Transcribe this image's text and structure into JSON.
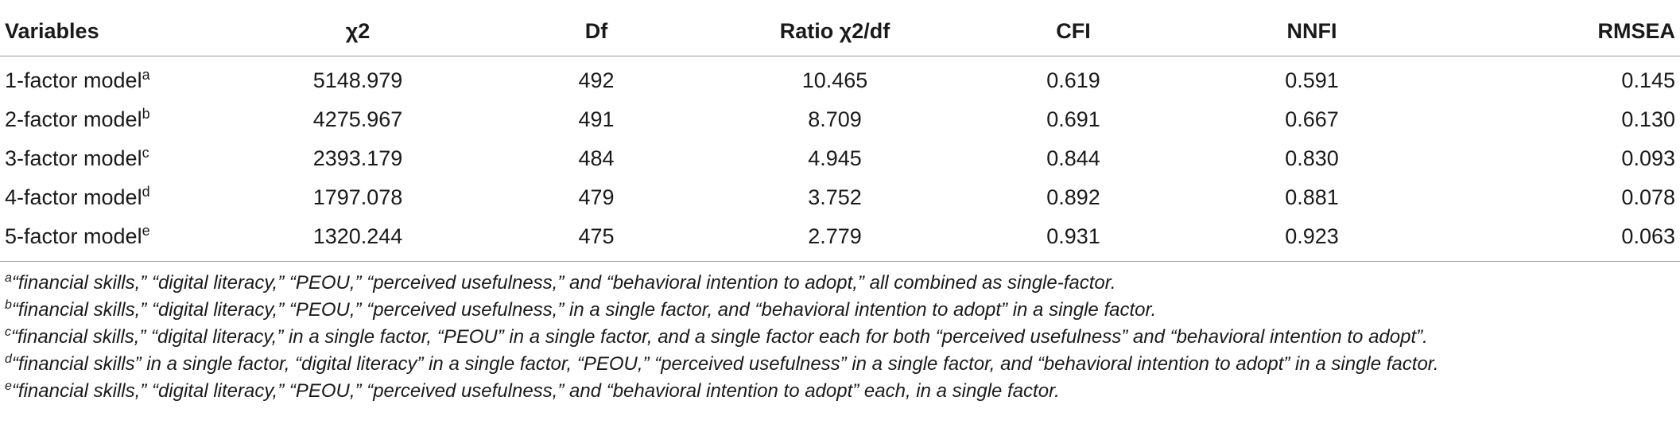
{
  "table": {
    "headers": [
      "Variables",
      "χ2",
      "Df",
      "Ratio  χ2/df",
      "CFI",
      "NNFI",
      "RMSEA"
    ],
    "rows": [
      {
        "label": "1-factor model",
        "sup": "a",
        "values": [
          "5148.979",
          "492",
          "10.465",
          "0.619",
          "0.591",
          "0.145"
        ]
      },
      {
        "label": "2-factor model",
        "sup": "b",
        "values": [
          "4275.967",
          "491",
          "8.709",
          "0.691",
          "0.667",
          "0.130"
        ]
      },
      {
        "label": "3-factor model",
        "sup": "c",
        "values": [
          "2393.179",
          "484",
          "4.945",
          "0.844",
          "0.830",
          "0.093"
        ]
      },
      {
        "label": "4-factor model",
        "sup": "d",
        "values": [
          "1797.078",
          "479",
          "3.752",
          "0.892",
          "0.881",
          "0.078"
        ]
      },
      {
        "label": "5-factor model",
        "sup": "e",
        "values": [
          "1320.244",
          "475",
          "2.779",
          "0.931",
          "0.923",
          "0.063"
        ]
      }
    ]
  },
  "footnotes": [
    {
      "mark": "a",
      "text": "“financial skills,” “digital literacy,” “PEOU,” “perceived usefulness,” and “behavioral intention to adopt,” all combined as single-factor."
    },
    {
      "mark": "b",
      "text": "“financial skills,” “digital literacy,” “PEOU,” “perceived usefulness,” in a single factor, and “behavioral intention to adopt” in a single factor."
    },
    {
      "mark": "c",
      "text": "“financial skills,” “digital literacy,” in a single factor, “PEOU” in a single factor, and a single factor each for both “perceived usefulness” and “behavioral intention to adopt”."
    },
    {
      "mark": "d",
      "text": "“financial skills” in a single factor, “digital literacy” in a single factor, “PEOU,” “perceived usefulness” in a single factor, and “behavioral intention to adopt” in a single factor."
    },
    {
      "mark": "e",
      "text": "“financial skills,” “digital literacy,” “PEOU,” “perceived usefulness,” and “behavioral intention to adopt” each, in a single factor."
    }
  ]
}
